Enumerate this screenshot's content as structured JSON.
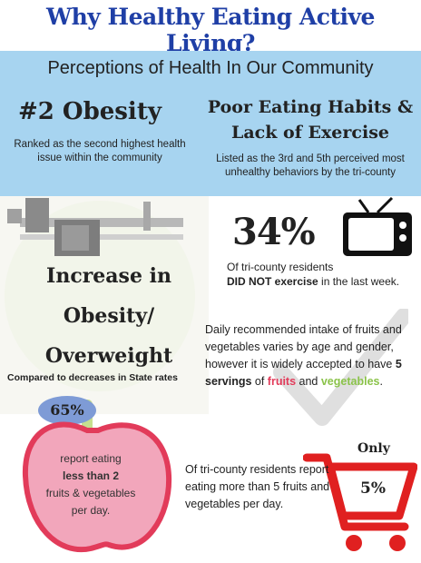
{
  "header": {
    "title": "Why Healthy Eating Active Living?"
  },
  "perceptions": {
    "heading": "Perceptions of Health In Our Community",
    "obesity": {
      "rank": "#2 Obesity",
      "desc": "Ranked as the second highest health issue within the community"
    },
    "habits": {
      "line1": "Poor Eating Habits &",
      "line2": "Lack of Exercise",
      "desc": "Listed as the 3rd and 5th perceived most unhealthy behaviors by the tri-county"
    }
  },
  "increase": {
    "line1": "Increase in",
    "line2": "Obesity/",
    "line3": "Overweight",
    "note": "Compared to decreases in State rates"
  },
  "exercise": {
    "percent": "34%",
    "line1": "Of tri-county residents",
    "line2_bold": "DID NOT exercise",
    "line2_rest": " in the last week."
  },
  "recommended": {
    "text": "Daily recommended intake of fruits and vegetables varies by age and gender, however it is widely accepted to have ",
    "bold": "5 servings",
    "of": " of ",
    "fruits": "fruits",
    "and": " and ",
    "vegetables": "vegetables",
    "end": "."
  },
  "apple": {
    "percent": "65%",
    "line1": "report eating",
    "line2_bold": "less than 2",
    "line3": "fruits & vegetables",
    "line4": "per day."
  },
  "cart": {
    "only": "Only",
    "percent": "5%",
    "text": "Of tri-county residents report eating more than 5 fruits and vegetables per day."
  },
  "colors": {
    "title": "#1f3fa6",
    "banner": "#a7d4f0",
    "apple": "#f2a6bb",
    "apple_outline": "#e23b5a",
    "leaf": "#7e9bd6",
    "cart": "#e02020",
    "fruits": "#e23b5a",
    "vegetables": "#8bc34a"
  }
}
